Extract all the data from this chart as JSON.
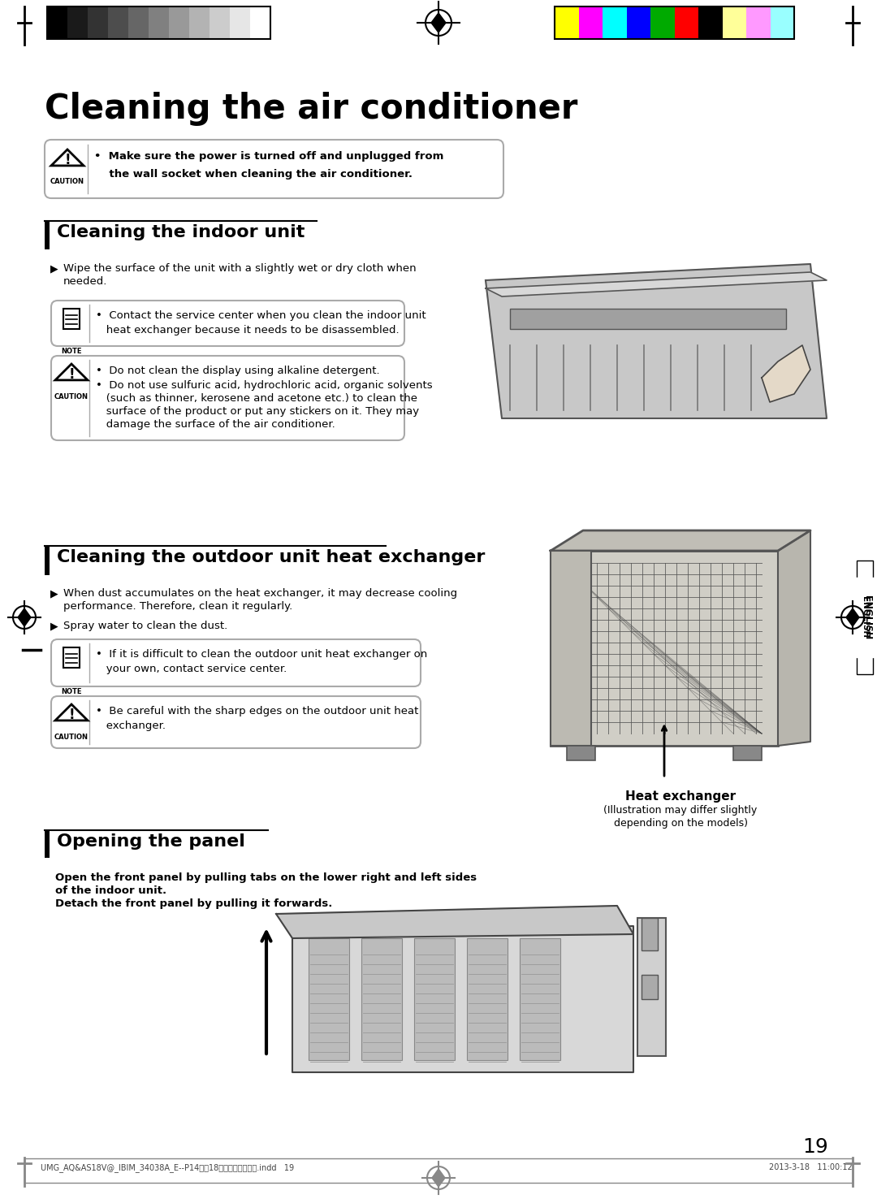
{
  "title": "Cleaning the air conditioner",
  "page_number": "19",
  "bg_color": "#ffffff",
  "caution_main_text_line1": "•  Make sure the power is turned off and unplugged from",
  "caution_main_text_line2": "    the wall socket when cleaning the air conditioner.",
  "section1_title": "Cleaning the indoor unit",
  "section1_bullet1_line1": "Wipe the surface of the unit with a slightly wet or dry cloth when",
  "section1_bullet1_line2": "needed.",
  "section1_note_line1": "•  Contact the service center when you clean the indoor unit",
  "section1_note_line2": "   heat exchanger because it needs to be disassembled.",
  "section1_caution1": "•  Do not clean the display using alkaline detergent.",
  "section1_caution2_line1": "•  Do not use sulfuric acid, hydrochloric acid, organic solvents",
  "section1_caution2_line2": "   (such as thinner, kerosene and acetone etc.) to clean the",
  "section1_caution2_line3": "   surface of the product or put any stickers on it. They may",
  "section1_caution2_line4": "   damage the surface of the air conditioner.",
  "section2_title": "Cleaning the outdoor unit heat exchanger",
  "section2_bullet1_line1": "When dust accumulates on the heat exchanger, it may decrease cooling",
  "section2_bullet1_line2": "performance. Therefore, clean it regularly.",
  "section2_bullet2": "Spray water to clean the dust.",
  "section2_note_line1": "•  If it is difficult to clean the outdoor unit heat exchanger on",
  "section2_note_line2": "   your own, contact service center.",
  "section2_caution_line1": "•  Be careful with the sharp edges on the outdoor unit heat",
  "section2_caution_line2": "   exchanger.",
  "heat_exchanger_label": "Heat exchanger",
  "heat_exchanger_sub_line1": "(Illustration may differ slightly",
  "heat_exchanger_sub_line2": "depending on the models)",
  "section3_title": "Opening the panel",
  "section3_line1": "Open the front panel by pulling tabs on the lower right and left sides",
  "section3_line2": "of the indoor unit.",
  "section3_line3": "Detach the front panel by pulling it forwards.",
  "footer_left": "UMG_AQ&AS18V@_IBIM_34038A_E--P14Ｐ８18　　　　　　　　.indd   19",
  "footer_right": "2013-3-18   11:00:12",
  "english_label": "ENGLISH",
  "gray_bar_colors": [
    "#000000",
    "#1a1a1a",
    "#333333",
    "#4d4d4d",
    "#666666",
    "#808080",
    "#999999",
    "#b3b3b3",
    "#cccccc",
    "#e6e6e6",
    "#ffffff"
  ],
  "color_bar_colors": [
    "#ffff00",
    "#ff00ff",
    "#00ffff",
    "#0000ff",
    "#00aa00",
    "#ff0000",
    "#000000",
    "#ffff99",
    "#ff99ff",
    "#99ffff"
  ]
}
